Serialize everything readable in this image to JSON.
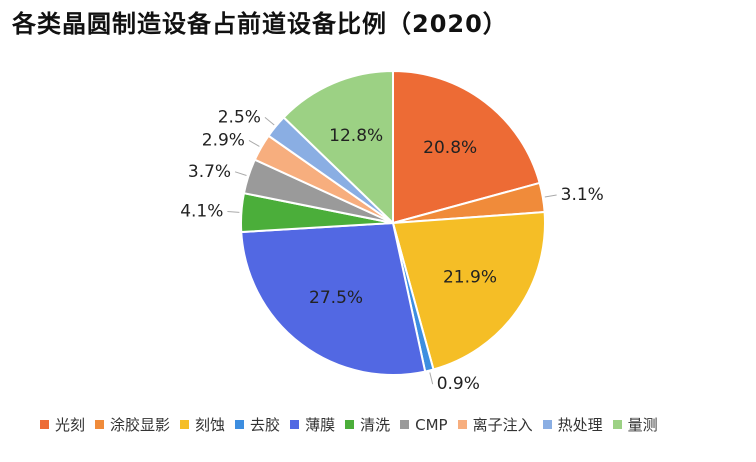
{
  "title": "各类晶圆制造设备占前道设备比例（2020）",
  "chart_data": {
    "type": "pie",
    "start_angle_deg": 0,
    "direction": "clockwise",
    "series": [
      {
        "name": "光刻",
        "value": 20.8,
        "label": "20.8%",
        "color": "#ED6B35"
      },
      {
        "name": "涂胶显影",
        "value": 3.1,
        "label": "3.1%",
        "color": "#F08B3A"
      },
      {
        "name": "刻蚀",
        "value": 21.9,
        "label": "21.9%",
        "color": "#F5BE26"
      },
      {
        "name": "去胶",
        "value": 0.9,
        "label": "0.9%",
        "color": "#3D8EE0"
      },
      {
        "name": "薄膜",
        "value": 27.5,
        "label": "27.5%",
        "color": "#5268E3"
      },
      {
        "name": "清洗",
        "value": 4.1,
        "label": "4.1%",
        "color": "#4BAE3A"
      },
      {
        "name": "CMP",
        "value": 3.7,
        "label": "3.7%",
        "color": "#9A9A9A"
      },
      {
        "name": "离子注入",
        "value": 2.9,
        "label": "2.9%",
        "color": "#F7AE7E"
      },
      {
        "name": "热处理",
        "value": 2.5,
        "label": "2.5%",
        "color": "#8AAEE3"
      },
      {
        "name": "量测",
        "value": 12.8,
        "label": "12.8%",
        "color": "#9CD184"
      }
    ],
    "legend_position": "bottom"
  }
}
